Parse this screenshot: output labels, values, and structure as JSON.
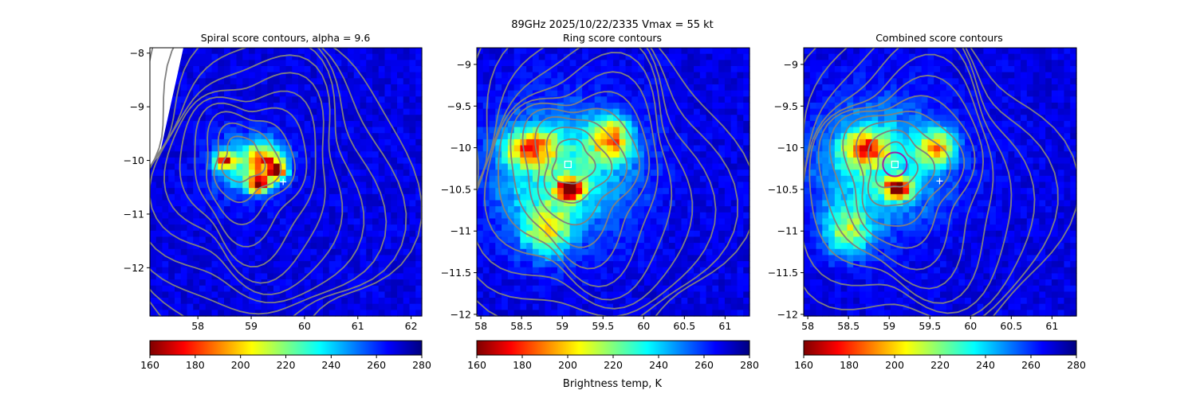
{
  "figure": {
    "suptitle_line1": "89GHz  2025/10/22/2335    Vmax = 55 kt",
    "colorbar_label": "Brightness temp, K"
  },
  "colormap": [
    "#00007f",
    "#0000ff",
    "#007fff",
    "#00ffff",
    "#7fff7f",
    "#ffff00",
    "#ff7f00",
    "#ff0000",
    "#7f0000"
  ],
  "colors": {
    "contour": "#808080",
    "ring_marker": "#9b1fa8",
    "center_square": "#ffffff",
    "center_plus": "#ffffff",
    "missing": "#ffffff"
  },
  "chart_data": [
    {
      "type": "heatmap",
      "title": "Spiral score contours, alpha =  9.6",
      "xlim": [
        57.1,
        62.2
      ],
      "ylim": [
        -12.9,
        -7.9
      ],
      "xticks": [
        58,
        59,
        60,
        61,
        62
      ],
      "yticks": [
        -8,
        -9,
        -10,
        -11,
        -12
      ],
      "background_value": 268,
      "missing_wedge": true,
      "field": [
        {
          "x": 58.9,
          "y": -10.1,
          "sx": 0.6,
          "sy": 0.55,
          "value": 232
        },
        {
          "x": 59.3,
          "y": -10.0,
          "sx": 0.35,
          "sy": 0.3,
          "value": 205
        },
        {
          "x": 59.15,
          "y": -10.45,
          "sx": 0.18,
          "sy": 0.15,
          "value": 165
        },
        {
          "x": 58.5,
          "y": -10.0,
          "sx": 0.2,
          "sy": 0.15,
          "value": 200
        },
        {
          "x": 59.5,
          "y": -10.2,
          "sx": 0.15,
          "sy": 0.15,
          "value": 185
        }
      ],
      "contour_center": [
        58.8,
        -9.95
      ],
      "markers": {
        "plus": [
          59.6,
          -10.4
        ]
      },
      "colorbar": {
        "ticks": [
          160,
          180,
          200,
          220,
          240,
          260,
          280
        ],
        "range": [
          160,
          280
        ]
      }
    },
    {
      "type": "heatmap",
      "title": "Ring score contours",
      "xlim": [
        57.95,
        61.3
      ],
      "ylim": [
        -12.02,
        -8.8
      ],
      "xticks": [
        58.0,
        58.5,
        59.0,
        59.5,
        60.0,
        60.5,
        61.0
      ],
      "yticks": [
        -9.0,
        -9.5,
        -10.0,
        -10.5,
        -11.0,
        -11.5,
        -12.0
      ],
      "background_value": 268,
      "field": [
        {
          "x": 59.0,
          "y": -10.3,
          "sx": 0.85,
          "sy": 0.75,
          "value": 228
        },
        {
          "x": 59.6,
          "y": -9.9,
          "sx": 0.25,
          "sy": 0.25,
          "value": 205
        },
        {
          "x": 58.6,
          "y": -10.0,
          "sx": 0.3,
          "sy": 0.2,
          "value": 205
        },
        {
          "x": 59.1,
          "y": -10.5,
          "sx": 0.15,
          "sy": 0.12,
          "value": 168
        },
        {
          "x": 58.8,
          "y": -11.0,
          "sx": 0.3,
          "sy": 0.3,
          "value": 220
        }
      ],
      "contour_center": [
        59.1,
        -10.15
      ],
      "markers": {
        "square": [
          59.07,
          -10.2
        ]
      },
      "colorbar": {
        "ticks": [
          160,
          180,
          200,
          220,
          240,
          260,
          280
        ],
        "range": [
          160,
          280
        ]
      }
    },
    {
      "type": "heatmap",
      "title": "Combined score contours",
      "xlim": [
        57.95,
        61.3
      ],
      "ylim": [
        -12.02,
        -8.8
      ],
      "xticks": [
        58.0,
        58.5,
        59.0,
        59.5,
        60.0,
        60.5,
        61.0
      ],
      "yticks": [
        -9.0,
        -9.5,
        -10.0,
        -10.5,
        -11.0,
        -11.5,
        -12.0
      ],
      "background_value": 268,
      "field": [
        {
          "x": 58.9,
          "y": -10.2,
          "sx": 0.8,
          "sy": 0.7,
          "value": 230
        },
        {
          "x": 59.1,
          "y": -10.5,
          "sx": 0.15,
          "sy": 0.12,
          "value": 166
        },
        {
          "x": 58.7,
          "y": -10.0,
          "sx": 0.25,
          "sy": 0.2,
          "value": 205
        },
        {
          "x": 59.6,
          "y": -10.0,
          "sx": 0.2,
          "sy": 0.2,
          "value": 205
        },
        {
          "x": 58.5,
          "y": -11.0,
          "sx": 0.3,
          "sy": 0.3,
          "value": 222
        }
      ],
      "contour_center": [
        59.05,
        -10.2
      ],
      "markers": {
        "square": [
          59.07,
          -10.2
        ],
        "circle": [
          59.07,
          -10.2
        ],
        "plus": [
          59.62,
          -10.4
        ]
      },
      "colorbar": {
        "ticks": [
          160,
          180,
          200,
          220,
          240,
          260,
          280
        ],
        "range": [
          160,
          280
        ]
      }
    }
  ]
}
